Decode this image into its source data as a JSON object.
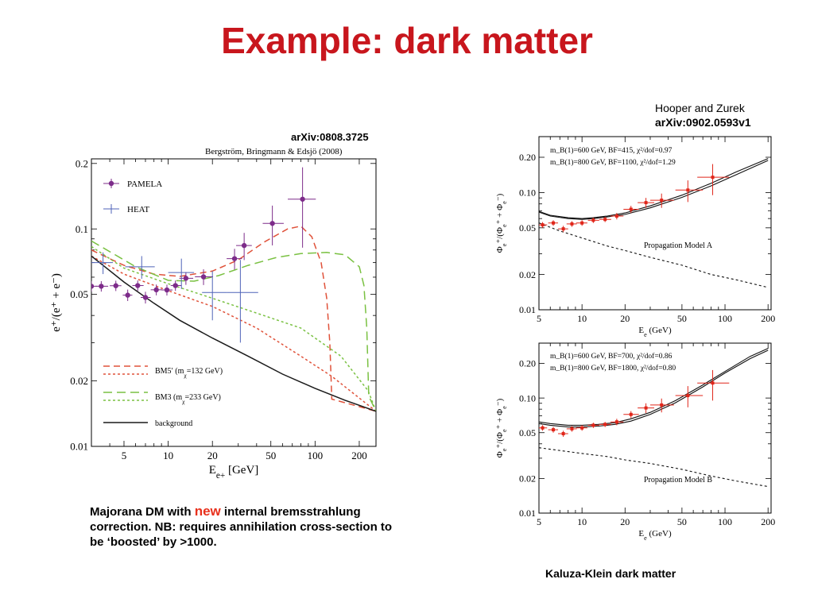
{
  "slide": {
    "title": "Example: dark matter",
    "title_color": "#c8161d",
    "footer_fragment": "",
    "footer_color": "#1f3fa8"
  },
  "left_panel": {
    "arxiv": "arXiv:0808.3725",
    "authors": "Bergström, Bringmann & Edsjö (2008)",
    "caption": {
      "part1": "Majorana DM with ",
      "highlight": "new",
      "part2": " internal bremsstrahlung correction. NB: requires annihilation cross-section to be ‘boosted’ by >1000.",
      "highlight_color": "#e8301c"
    }
  },
  "right_panel": {
    "authors": "Hooper and Zurek",
    "arxiv": "arXiv:0902.0593v1",
    "caption": "Kaluza-Klein dark matter"
  },
  "chart_data": [
    {
      "id": "bbe",
      "type": "scatter",
      "x_scale": "log",
      "y_scale": "log",
      "xlim": [
        3,
        260
      ],
      "ylim": [
        0.01,
        0.21
      ],
      "xlabel": "E_{e+} [GeV]",
      "ylabel": "e+/(e+ + e−)",
      "xticks": [
        5,
        10,
        20,
        50,
        100,
        200
      ],
      "yticks": [
        0.01,
        0.02,
        0.05,
        0.1,
        0.2
      ],
      "ytick_labels": [
        "0.01",
        "0.02",
        "0.05",
        "0.1",
        "0.2"
      ],
      "legend_position": "top-left",
      "series": [
        {
          "name": "PAMELA",
          "kind": "points",
          "color": "#7d2c8a",
          "x": [
            3.0,
            3.5,
            4.4,
            5.3,
            6.2,
            7.0,
            8.3,
            9.8,
            11.2,
            13.2,
            17.4,
            28.3,
            32.9,
            51.2,
            82.2
          ],
          "y": [
            0.0545,
            0.0545,
            0.0548,
            0.0496,
            0.0549,
            0.0484,
            0.0525,
            0.0524,
            0.0549,
            0.0593,
            0.0602,
            0.073,
            0.0839,
            0.106,
            0.137
          ],
          "yerr": [
            0.003,
            0.003,
            0.003,
            0.003,
            0.003,
            0.003,
            0.003,
            0.003,
            0.003,
            0.004,
            0.005,
            0.008,
            0.012,
            0.022,
            0.055
          ],
          "xerr_lo": [
            0.3,
            0.3,
            0.4,
            0.4,
            0.5,
            0.5,
            0.7,
            0.8,
            0.8,
            1.3,
            2.2,
            3.3,
            3.9,
            7.2,
            17.0
          ],
          "xerr_hi": [
            0.3,
            0.4,
            0.4,
            0.4,
            0.6,
            0.6,
            0.8,
            0.9,
            1.1,
            1.6,
            2.8,
            3.5,
            4.2,
            10.0,
            19.0
          ]
        },
        {
          "name": "HEAT",
          "kind": "points",
          "color": "#4f63b8",
          "x": [
            3.6,
            6.6,
            12.3,
            20.0,
            31.0
          ],
          "y": [
            0.07,
            0.067,
            0.063,
            0.051,
            0.051
          ],
          "yerr": [
            0.008,
            0.008,
            0.01,
            0.013,
            0.021
          ],
          "xerr_lo": [
            0.6,
            1.5,
            2.3,
            3.0,
            6.0
          ],
          "xerr_hi": [
            0.6,
            1.5,
            2.7,
            5.0,
            10.0
          ]
        },
        {
          "name": "BM5′ (m_χ=132 GeV)",
          "kind": "line",
          "color": "#e0523a",
          "dash": "8,5",
          "x": [
            3,
            5,
            8,
            12,
            20,
            30,
            45,
            65,
            80,
            95,
            110,
            120,
            126,
            130,
            260
          ],
          "y": [
            0.08,
            0.068,
            0.062,
            0.0605,
            0.064,
            0.072,
            0.087,
            0.1,
            0.103,
            0.092,
            0.07,
            0.048,
            0.03,
            0.0165,
            0.0145
          ]
        },
        {
          "name": "",
          "kind": "line",
          "color": "#e0523a",
          "dash": "3,3",
          "x": [
            3,
            5,
            10,
            20,
            40,
            80,
            130,
            260
          ],
          "y": [
            0.075,
            0.062,
            0.052,
            0.044,
            0.035,
            0.026,
            0.021,
            0.0145
          ]
        },
        {
          "name": "BM3 (m_χ=233 GeV)",
          "kind": "line",
          "color": "#7ac142",
          "dash": "11,6",
          "x": [
            3,
            6,
            10,
            15,
            22,
            35,
            55,
            80,
            120,
            160,
            200,
            215,
            225,
            232,
            260
          ],
          "y": [
            0.088,
            0.067,
            0.058,
            0.0575,
            0.061,
            0.068,
            0.074,
            0.077,
            0.078,
            0.076,
            0.067,
            0.055,
            0.035,
            0.017,
            0.0145
          ]
        },
        {
          "name": "",
          "kind": "line",
          "color": "#7ac142",
          "dash": "3,3",
          "x": [
            3,
            5,
            10,
            20,
            40,
            80,
            150,
            230,
            260
          ],
          "y": [
            0.083,
            0.066,
            0.056,
            0.048,
            0.041,
            0.035,
            0.026,
            0.018,
            0.0145
          ]
        },
        {
          "name": "background",
          "kind": "line",
          "color": "#1a1a1a",
          "dash": "",
          "x": [
            3,
            5,
            8,
            12,
            20,
            35,
            60,
            100,
            160,
            260
          ],
          "y": [
            0.075,
            0.057,
            0.0455,
            0.038,
            0.0315,
            0.026,
            0.0215,
            0.0185,
            0.0163,
            0.0145
          ]
        }
      ]
    },
    {
      "id": "hzA",
      "type": "scatter",
      "x_scale": "log",
      "y_scale": "log",
      "xlim": [
        5,
        210
      ],
      "ylim": [
        0.01,
        0.3
      ],
      "xlabel": "E_e (GeV)",
      "ylabel": "Φ_e+/(Φ_e+ + Φ_e−)",
      "xticks": [
        5,
        10,
        20,
        50,
        100,
        200
      ],
      "yticks": [
        0.01,
        0.02,
        0.05,
        0.1,
        0.2
      ],
      "ytick_labels": [
        "0.01",
        "0.02",
        "0.05",
        "0.10",
        "0.20"
      ],
      "annotations": [
        "m_B(1)=600 GeV, BF=415, χ²/dof=0.97",
        "m_B(1)=800 GeV, BF=1100, χ²/dof=1.29",
        "Propagation Model A"
      ],
      "series": [
        {
          "name": "PAMELA",
          "kind": "points",
          "color": "#e0261a",
          "x": [
            5.3,
            6.3,
            7.4,
            8.5,
            10.0,
            12.0,
            14.5,
            17.5,
            22.0,
            28.0,
            36.0,
            55.0,
            82.0
          ],
          "y": [
            0.053,
            0.055,
            0.049,
            0.054,
            0.055,
            0.058,
            0.059,
            0.063,
            0.072,
            0.082,
            0.086,
            0.105,
            0.135
          ],
          "yerr": [
            0.003,
            0.003,
            0.003,
            0.003,
            0.003,
            0.003,
            0.003,
            0.004,
            0.005,
            0.008,
            0.012,
            0.022,
            0.04
          ],
          "xerr_lo": [
            0.4,
            0.5,
            0.6,
            0.7,
            0.9,
            1.0,
            1.3,
            1.7,
            2.5,
            3.5,
            6.0,
            10.0,
            18.0
          ],
          "xerr_hi": [
            0.4,
            0.5,
            0.6,
            0.7,
            0.9,
            1.2,
            1.5,
            2.0,
            3.0,
            4.0,
            8.0,
            15.0,
            25.0
          ]
        },
        {
          "name": "m_B(1)=600 GeV",
          "kind": "line",
          "color": "#111",
          "dash": "",
          "x": [
            5,
            6,
            8,
            10,
            12,
            15,
            20,
            30,
            50,
            80,
            120,
            200
          ],
          "y": [
            0.069,
            0.064,
            0.061,
            0.06,
            0.061,
            0.063,
            0.067,
            0.077,
            0.095,
            0.12,
            0.15,
            0.195
          ]
        },
        {
          "name": "m_B(1)=800 GeV",
          "kind": "line",
          "color": "#111",
          "dash": "",
          "x": [
            5,
            6,
            8,
            10,
            12,
            15,
            20,
            30,
            50,
            80,
            120,
            200
          ],
          "y": [
            0.068,
            0.063,
            0.06,
            0.059,
            0.06,
            0.062,
            0.065,
            0.074,
            0.091,
            0.114,
            0.142,
            0.188
          ]
        },
        {
          "name": "background",
          "kind": "line",
          "color": "#111",
          "dash": "3,3",
          "x": [
            5,
            7,
            10,
            15,
            20,
            30,
            50,
            80,
            120,
            200
          ],
          "y": [
            0.055,
            0.047,
            0.041,
            0.035,
            0.032,
            0.028,
            0.024,
            0.02,
            0.018,
            0.0155
          ]
        }
      ]
    },
    {
      "id": "hzB",
      "type": "scatter",
      "x_scale": "log",
      "y_scale": "log",
      "xlim": [
        5,
        210
      ],
      "ylim": [
        0.01,
        0.3
      ],
      "xlabel": "E_e (GeV)",
      "ylabel": "Φ_e+/(Φ_e+ + Φ_e−)",
      "xticks": [
        5,
        10,
        20,
        50,
        100,
        200
      ],
      "yticks": [
        0.01,
        0.02,
        0.05,
        0.1,
        0.2
      ],
      "ytick_labels": [
        "0.01",
        "0.02",
        "0.05",
        "0.10",
        "0.20"
      ],
      "annotations": [
        "m_B(1)=600 GeV, BF=700, χ²/dof=0.86",
        "m_B(1)=800 GeV, BF=1800, χ²/dof=0.80",
        "Propagation Model B"
      ],
      "series": [
        {
          "name": "PAMELA",
          "kind": "points",
          "color": "#e0261a",
          "x": [
            5.3,
            6.3,
            7.4,
            8.5,
            10.0,
            12.0,
            14.5,
            17.5,
            22.0,
            28.0,
            36.0,
            55.0,
            82.0
          ],
          "y": [
            0.055,
            0.053,
            0.049,
            0.054,
            0.055,
            0.058,
            0.059,
            0.062,
            0.072,
            0.082,
            0.087,
            0.105,
            0.135
          ],
          "yerr": [
            0.003,
            0.003,
            0.003,
            0.003,
            0.003,
            0.003,
            0.003,
            0.004,
            0.005,
            0.008,
            0.012,
            0.022,
            0.04
          ],
          "xerr_lo": [
            0.4,
            0.5,
            0.6,
            0.7,
            0.9,
            1.0,
            1.3,
            1.7,
            2.5,
            3.5,
            6.0,
            10.0,
            18.0
          ],
          "xerr_hi": [
            0.4,
            0.5,
            0.6,
            0.7,
            0.9,
            1.2,
            1.5,
            2.0,
            3.0,
            4.0,
            8.0,
            15.0,
            25.0
          ]
        },
        {
          "name": "m_B(1)=600 GeV",
          "kind": "line",
          "color": "#111",
          "dash": "",
          "x": [
            5,
            6,
            8,
            10,
            13,
            17,
            22,
            30,
            45,
            70,
            100,
            150,
            200
          ],
          "y": [
            0.062,
            0.06,
            0.058,
            0.058,
            0.059,
            0.061,
            0.066,
            0.075,
            0.095,
            0.13,
            0.17,
            0.23,
            0.27
          ]
        },
        {
          "name": "m_B(1)=800 GeV",
          "kind": "line",
          "color": "#111",
          "dash": "",
          "x": [
            5,
            6,
            8,
            10,
            13,
            17,
            22,
            30,
            45,
            70,
            100,
            150,
            200
          ],
          "y": [
            0.06,
            0.058,
            0.056,
            0.056,
            0.057,
            0.059,
            0.063,
            0.072,
            0.091,
            0.125,
            0.165,
            0.22,
            0.26
          ]
        },
        {
          "name": "background",
          "kind": "line",
          "color": "#111",
          "dash": "3,3",
          "x": [
            5,
            7,
            10,
            15,
            20,
            30,
            50,
            80,
            120,
            200
          ],
          "y": [
            0.037,
            0.035,
            0.033,
            0.031,
            0.029,
            0.027,
            0.024,
            0.021,
            0.019,
            0.017
          ]
        }
      ]
    }
  ]
}
